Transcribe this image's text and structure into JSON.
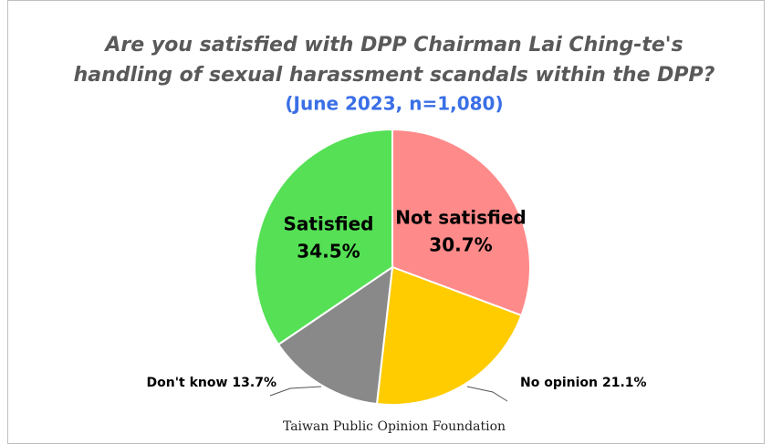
{
  "chart_data": {
    "type": "pie",
    "title": [
      "Are you satisfied with DPP Chairman Lai Ching-te's",
      "handling of sexual harassment scandals within the DPP?"
    ],
    "subtitle": "(June 2023, n=1,080)",
    "categories": [
      "Not satisfied",
      "No opinion",
      "Don't know",
      "Satisfied"
    ],
    "values": [
      30.7,
      21.1,
      13.7,
      34.5
    ],
    "value_labels": [
      "30.7%",
      "21.1%",
      "13.7%",
      "34.5%"
    ],
    "colors": [
      "#ff8a8a",
      "#ffcc00",
      "#898989",
      "#55e055"
    ],
    "source": "Taiwan Public Opinion Foundation"
  }
}
